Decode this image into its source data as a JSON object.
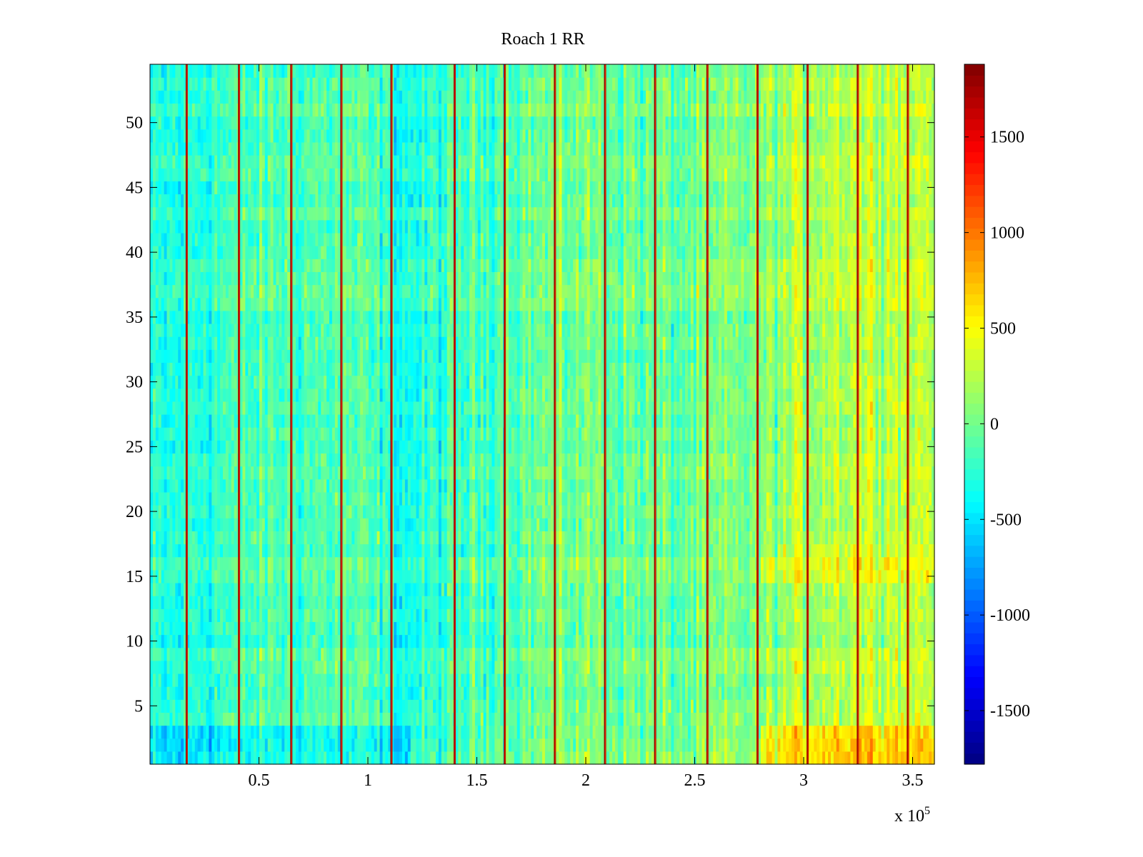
{
  "chart_data": {
    "type": "heatmap",
    "title": "Roach 1 RR",
    "x_exponent_label": "x 10",
    "x_exponent_sup": "5",
    "xlim": [
      0,
      360000
    ],
    "ylim": [
      0.5,
      54.5
    ],
    "x_ticks": [
      {
        "value": 50000,
        "label": "0.5"
      },
      {
        "value": 100000,
        "label": "1"
      },
      {
        "value": 150000,
        "label": "1.5"
      },
      {
        "value": 200000,
        "label": "2"
      },
      {
        "value": 250000,
        "label": "2.5"
      },
      {
        "value": 300000,
        "label": "3"
      },
      {
        "value": 350000,
        "label": "3.5"
      }
    ],
    "y_ticks": [
      {
        "value": 5,
        "label": "5"
      },
      {
        "value": 10,
        "label": "10"
      },
      {
        "value": 15,
        "label": "15"
      },
      {
        "value": 20,
        "label": "20"
      },
      {
        "value": 25,
        "label": "25"
      },
      {
        "value": 30,
        "label": "30"
      },
      {
        "value": 35,
        "label": "35"
      },
      {
        "value": 40,
        "label": "40"
      },
      {
        "value": 45,
        "label": "45"
      },
      {
        "value": 50,
        "label": "50"
      }
    ],
    "colorbar": {
      "colormap": "jet",
      "range": [
        -1780,
        1880
      ],
      "ticks": [
        {
          "value": -1500,
          "label": "-1500"
        },
        {
          "value": -1000,
          "label": "-1000"
        },
        {
          "value": -500,
          "label": "-500"
        },
        {
          "value": 0,
          "label": "0"
        },
        {
          "value": 500,
          "label": "500"
        },
        {
          "value": 1000,
          "label": "1000"
        },
        {
          "value": 1500,
          "label": "1500"
        }
      ]
    },
    "rows": 54,
    "stripe_x": [
      17000,
      41000,
      65000,
      88000,
      111000,
      140000,
      163000,
      186000,
      209000,
      232000,
      256000,
      279000,
      302000,
      325000,
      348000
    ],
    "column_means": [
      {
        "x": 0,
        "value": -350
      },
      {
        "x": 40000,
        "value": -150
      },
      {
        "x": 90000,
        "value": -80
      },
      {
        "x": 120000,
        "value": -320
      },
      {
        "x": 160000,
        "value": -60
      },
      {
        "x": 200000,
        "value": 40
      },
      {
        "x": 240000,
        "value": -60
      },
      {
        "x": 280000,
        "value": 60
      },
      {
        "x": 310000,
        "value": 280
      },
      {
        "x": 340000,
        "value": 340
      },
      {
        "x": 360000,
        "value": 320
      }
    ],
    "grid": false
  }
}
